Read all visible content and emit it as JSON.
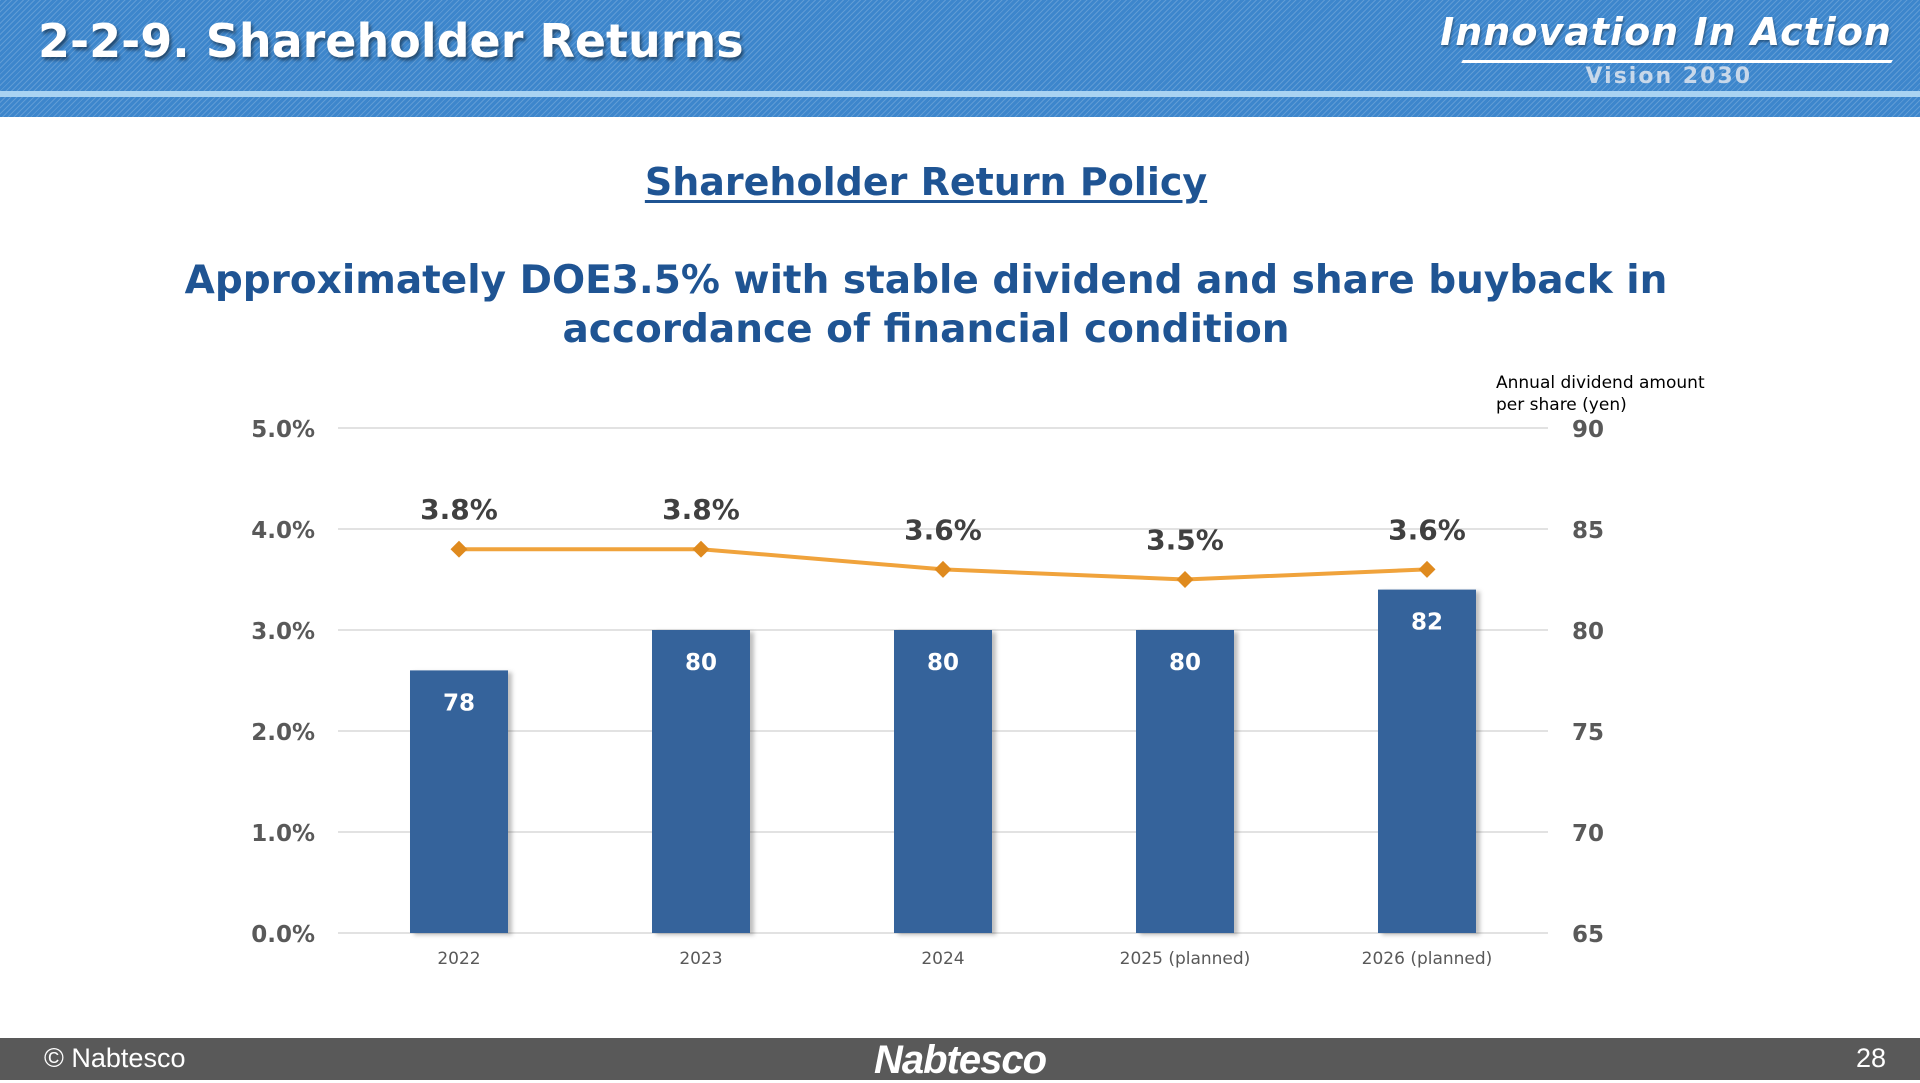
{
  "header": {
    "title": "2-2-9. Shareholder Returns",
    "brand_main": "Innovation In Action",
    "brand_sub": "Vision 2030"
  },
  "content": {
    "policy_title": "Shareholder Return Policy",
    "policy_subtitle": "Approximately DOE3.5% with stable dividend and share buyback in accordance of financial condition"
  },
  "chart_data": {
    "type": "bar",
    "categories": [
      "2022",
      "2023",
      "2024",
      "2025 (planned)",
      "2026 (planned)"
    ],
    "bar_values": [
      78,
      80,
      80,
      80,
      82
    ],
    "bar_labels": [
      "78",
      "80",
      "80",
      "80",
      "82"
    ],
    "line_values": [
      3.8,
      3.8,
      3.6,
      3.5,
      3.6
    ],
    "line_labels": [
      "3.8%",
      "3.8%",
      "3.6%",
      "3.5%",
      "3.6%"
    ],
    "y_left": {
      "min": 0,
      "max": 5,
      "ticks": [
        "0.0%",
        "1.0%",
        "2.0%",
        "3.0%",
        "4.0%",
        "5.0%"
      ]
    },
    "y_right": {
      "min": 65,
      "max": 90,
      "ticks": [
        "65",
        "70",
        "75",
        "80",
        "85",
        "90"
      ],
      "label_line1": "Annual dividend amount",
      "label_line2": "per share (yen)"
    },
    "grid": true,
    "colors": {
      "bar": "#35639b",
      "line": "#f0a33c",
      "marker": "#df8a1e",
      "grid": "#d9d9d9",
      "tick_text": "#595959",
      "value_text": "#404040"
    }
  },
  "footer": {
    "copyright": "© Nabtesco",
    "logo": "Nabtesco",
    "page_number": "28"
  }
}
